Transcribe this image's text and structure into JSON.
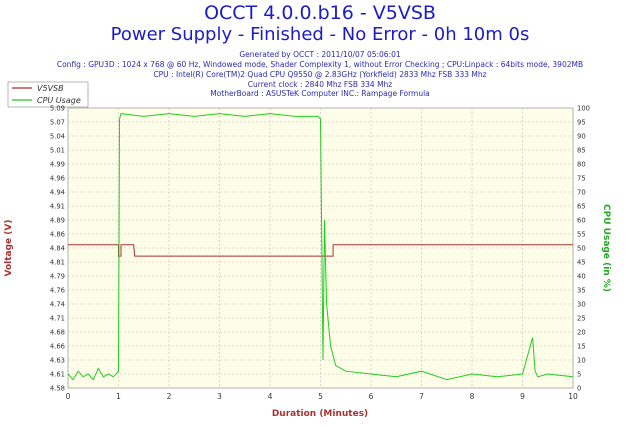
{
  "header": {
    "title": "OCCT 4.0.0.b16 - V5VSB",
    "subtitle": "Power Supply - Finished - No Error - 0h 10m 0s",
    "info": [
      "Generated by OCCT : 2011/10/07 05:06:01",
      "Config : GPU3D : 1024 x 768 @ 60 Hz, Windowed mode, Shader Complexity 1, without Error Checking ; CPU:Linpack : 64bits mode, 3902MB",
      "CPU : Intel(R) Core(TM)2 Quad CPU Q9550 @ 2.83GHz (Yorkfield) 2833 Mhz FSB 333 Mhz",
      "Current clock : 2840 Mhz FSB 334 Mhz",
      "MotherBoard : ASUSTeK Computer INC.: Rampage Formula"
    ]
  },
  "chart_data": {
    "type": "line",
    "xlabel": "Duration (Minutes)",
    "ylabel": "Voltage (V)",
    "y2label": "CPU Usage (in %)",
    "xlim": [
      0,
      10
    ],
    "ylim": [
      4.58,
      5.1
    ],
    "y2lim": [
      0,
      100
    ],
    "x_ticks": [
      "0",
      "1",
      "2",
      "3",
      "4",
      "5",
      "6",
      "7",
      "8",
      "9",
      "10"
    ],
    "y_ticks": [
      "4.58",
      "4.61",
      "4.63",
      "4.66",
      "4.68",
      "4.71",
      "4.74",
      "4.76",
      "4.79",
      "4.81",
      "4.84",
      "4.86",
      "4.89",
      "4.91",
      "4.94",
      "4.96",
      "4.99",
      "5.01",
      "5.04",
      "5.07",
      "5.09"
    ],
    "y2_ticks": [
      "0",
      "5",
      "10",
      "15",
      "20",
      "25",
      "30",
      "35",
      "40",
      "45",
      "50",
      "55",
      "60",
      "65",
      "70",
      "75",
      "80",
      "85",
      "90",
      "95",
      "100"
    ],
    "grid": true,
    "legend": "top-left",
    "series": [
      {
        "name": "V5VSB",
        "axis": "left",
        "color": "#a83232",
        "x": [
          0,
          1.0,
          1.0,
          1.05,
          1.05,
          1.2,
          1.22,
          1.3,
          1.32,
          1.4,
          5.05,
          5.05,
          5.25,
          5.25,
          10
        ],
        "y": [
          4.846,
          4.846,
          4.825,
          4.825,
          4.846,
          4.846,
          4.846,
          4.846,
          4.825,
          4.825,
          4.825,
          4.825,
          4.825,
          4.846,
          4.846
        ]
      },
      {
        "name": "CPU Usage",
        "axis": "right",
        "color": "#22cc22",
        "x": [
          0,
          0.1,
          0.2,
          0.3,
          0.4,
          0.5,
          0.6,
          0.7,
          0.8,
          0.9,
          1.0,
          1.02,
          1.05,
          1.5,
          2.0,
          2.5,
          3.0,
          3.5,
          4.0,
          4.5,
          4.95,
          5.0,
          5.05,
          5.08,
          5.12,
          5.2,
          5.3,
          5.5,
          6.0,
          6.5,
          7.0,
          7.5,
          8.0,
          8.5,
          9.0,
          9.2,
          9.25,
          9.3,
          9.5,
          10
        ],
        "y": [
          5,
          3,
          6,
          4,
          5,
          3,
          7,
          4,
          5,
          4,
          6,
          96,
          98,
          97,
          98,
          97,
          98,
          97,
          98,
          97,
          97,
          96,
          10,
          60,
          30,
          15,
          8,
          6,
          5,
          4,
          6,
          3,
          5,
          4,
          5,
          18,
          6,
          4,
          5,
          4
        ]
      }
    ]
  }
}
